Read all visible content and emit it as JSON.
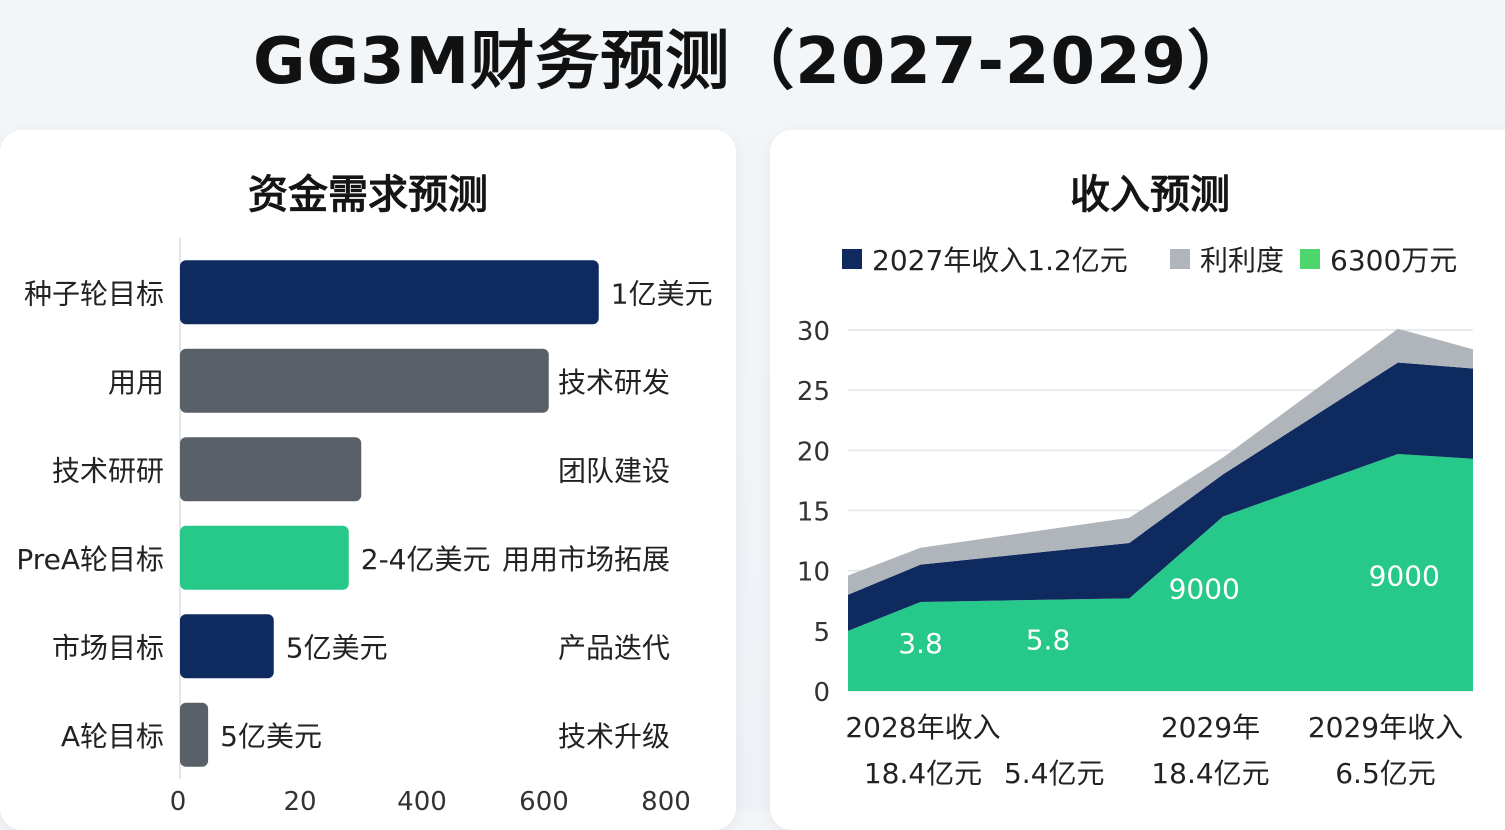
{
  "page_title": "GG3M财务预测（2027-2029）",
  "colors": {
    "navy": "#0f2a5f",
    "gray": "#5a6068",
    "light_gray": "#b0b5bb",
    "green": "#27c98a",
    "green_light": "#4ed66e"
  },
  "chart_data": [
    {
      "type": "bar",
      "orientation": "horizontal",
      "title": "资金需求预测",
      "categories": [
        "种子轮目标",
        "用用",
        "技术研研",
        "PreA轮目标",
        "市场目标",
        "A轮目标"
      ],
      "values": [
        670,
        590,
        290,
        270,
        150,
        45
      ],
      "bar_colors": [
        "navy",
        "gray",
        "gray",
        "green",
        "navy",
        "gray"
      ],
      "value_labels": [
        "1亿美元",
        "",
        "",
        "2-4亿美元",
        "5亿美元",
        "5亿美元"
      ],
      "right_labels": [
        "",
        "技术研发",
        "团队建设",
        "用用市场拓展",
        "产品迭代",
        "技术升级"
      ],
      "x_ticks": [
        "0",
        "20",
        "400",
        "600",
        "800"
      ],
      "xlim": [
        0,
        800
      ]
    },
    {
      "type": "area",
      "stacked": true,
      "title": "收入预测",
      "legend": [
        {
          "label": "2027年收入1.2亿元",
          "color": "navy"
        },
        {
          "label": "利利度",
          "color": "light_gray"
        },
        {
          "label": "6300万元",
          "color": "green_light"
        }
      ],
      "x": [
        0,
        0.58,
        2.25,
        3.0,
        4.4,
        5.0
      ],
      "series": [
        {
          "name": "6300万元",
          "color": "green",
          "values": [
            5.0,
            7.4,
            7.7,
            14.5,
            19.7,
            19.3
          ]
        },
        {
          "name": "2027年收入1.2亿元",
          "color": "navy",
          "values": [
            3.0,
            3.1,
            4.6,
            3.5,
            7.6,
            7.5
          ]
        },
        {
          "name": "利利度",
          "color": "light_gray",
          "values": [
            1.6,
            1.4,
            2.1,
            1.4,
            2.8,
            1.6
          ]
        }
      ],
      "annotations": [
        {
          "text": "3.8",
          "x": 0.58,
          "y": 4.0
        },
        {
          "text": "5.8",
          "x": 1.6,
          "y": 4.3
        },
        {
          "text": "9000",
          "x": 2.85,
          "y": 8.5
        },
        {
          "text": "9000",
          "x": 4.45,
          "y": 9.6
        }
      ],
      "y_ticks": [
        0,
        5,
        10,
        15,
        20,
        25,
        30
      ],
      "ylim": [
        0,
        30
      ],
      "xlim": [
        0,
        5.0
      ],
      "x_labels": [
        {
          "line1": "2028年收入",
          "line2": "18.4亿元",
          "x": 0.6
        },
        {
          "line1": "",
          "line2": "5.4亿元",
          "x": 1.65
        },
        {
          "line1": "2029年",
          "line2": "18.4亿元",
          "x": 2.9
        },
        {
          "line1": "2029年收入",
          "line2": "6.5亿元",
          "x": 4.3
        }
      ]
    }
  ]
}
